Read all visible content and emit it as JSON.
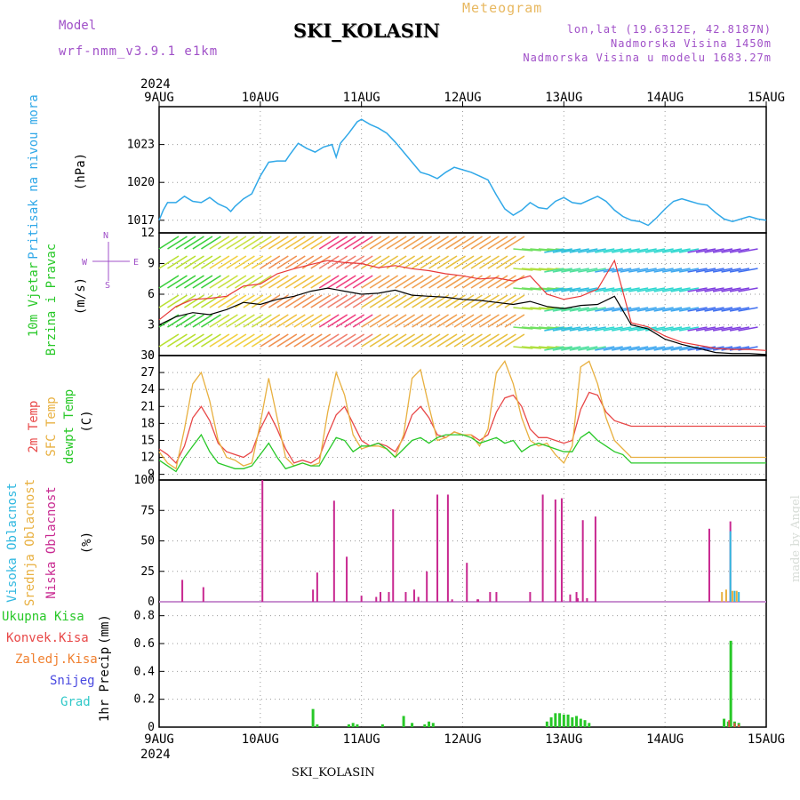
{
  "header": {
    "title": "SKI_KOLASIN",
    "subtitle": "Meteogram",
    "model_label": "Model",
    "model_value": "wrf-nmm_v3.9.1 e1km",
    "info_lines": [
      "lon,lat (19.6312E, 42.8187N)",
      "Nadmorska Visina 1450m",
      "Nadmorska Visina u modelu 1683.27m"
    ],
    "watermark": "made by Angel",
    "footer": "SKI_KOLASIN"
  },
  "x_axis": {
    "year": "2024",
    "labels": [
      "9AUG",
      "10AUG",
      "11AUG",
      "12AUG",
      "13AUG",
      "14AUG",
      "15AUG"
    ],
    "range_hours": [
      0,
      144
    ]
  },
  "colors": {
    "pressure": "#30a8e8",
    "temp2m": "#e84848",
    "sfc_temp": "#e8b040",
    "dewpt": "#28c828",
    "wind_speed": "#000000",
    "gust": "#e83838",
    "precip_total": "#28c828",
    "precip_conv": "#e84848",
    "precip_frozen": "#f08030",
    "snow": "#4848e0",
    "grad": "#30c8c8",
    "cloud_high": "#30b8e0",
    "cloud_mid": "#e8b040",
    "cloud_low": "#c82890"
  },
  "chart_data": [
    {
      "type": "line",
      "panel": "pressure",
      "ylabel": "Pritisak na nivou mora",
      "unit": "(hPa)",
      "ylim": [
        1016,
        1026
      ],
      "yticks": [
        1017,
        1020,
        1023
      ],
      "x": [
        0,
        1,
        2,
        4,
        6,
        8,
        10,
        12,
        14,
        16,
        17,
        18,
        20,
        22,
        24,
        26,
        28,
        30,
        31,
        33,
        35,
        37,
        39,
        41,
        42,
        43,
        45,
        47,
        48,
        50,
        52,
        54,
        56,
        58,
        60,
        62,
        64,
        66,
        68,
        70,
        72,
        74,
        76,
        78,
        80,
        82,
        84,
        86,
        88,
        90,
        92,
        94,
        96,
        98,
        100,
        102,
        104,
        106,
        108,
        110,
        112,
        114,
        116,
        118,
        120,
        122,
        124,
        126,
        128,
        130,
        132,
        134,
        136,
        138,
        140,
        142,
        144
      ],
      "y": [
        1017.0,
        1017.8,
        1018.4,
        1018.4,
        1018.9,
        1018.5,
        1018.4,
        1018.8,
        1018.3,
        1018.0,
        1017.7,
        1018.1,
        1018.7,
        1019.1,
        1020.5,
        1021.6,
        1021.7,
        1021.7,
        1022.2,
        1023.1,
        1022.7,
        1022.4,
        1022.8,
        1023.0,
        1022.0,
        1023.1,
        1023.9,
        1024.8,
        1025.0,
        1024.6,
        1024.3,
        1023.9,
        1023.2,
        1022.4,
        1021.6,
        1020.8,
        1020.6,
        1020.3,
        1020.8,
        1021.2,
        1021.0,
        1020.8,
        1020.5,
        1020.2,
        1019.0,
        1017.9,
        1017.4,
        1017.8,
        1018.4,
        1018.0,
        1017.9,
        1018.5,
        1018.8,
        1018.4,
        1018.3,
        1018.6,
        1018.9,
        1018.5,
        1017.8,
        1017.3,
        1017.0,
        1016.9,
        1016.6,
        1017.2,
        1017.9,
        1018.5,
        1018.7,
        1018.5,
        1018.3,
        1018.2,
        1017.6,
        1017.1,
        1016.9,
        1017.1,
        1017.3,
        1017.1,
        1017.0
      ]
    },
    {
      "type": "line",
      "panel": "wind",
      "ylabel": "10m Vjetar",
      "ylabel2": "Brzina i Pravac",
      "unit": "(m/s)",
      "ylim": [
        0,
        12
      ],
      "yticks": [
        0,
        3,
        6,
        9,
        12
      ],
      "compass": [
        "N",
        "W",
        "E",
        "S"
      ],
      "x": [
        0,
        4,
        8,
        12,
        16,
        20,
        24,
        28,
        32,
        36,
        40,
        44,
        48,
        52,
        56,
        60,
        64,
        68,
        72,
        76,
        80,
        84,
        88,
        92,
        96,
        100,
        104,
        108,
        112,
        116,
        120,
        124,
        128,
        132,
        136,
        140,
        144
      ],
      "y": [
        3.0,
        3.8,
        4.2,
        4.0,
        4.5,
        5.2,
        5.0,
        5.5,
        5.8,
        6.3,
        6.6,
        6.3,
        6.0,
        6.1,
        6.4,
        5.9,
        5.8,
        5.7,
        5.5,
        5.4,
        5.2,
        5.0,
        5.3,
        4.8,
        4.6,
        4.9,
        5.0,
        5.8,
        3.0,
        2.6,
        1.6,
        1.1,
        0.7,
        0.3,
        0.2,
        0.2,
        0.1
      ],
      "gust": [
        3.5,
        4.8,
        5.5,
        5.6,
        5.8,
        6.8,
        7.0,
        8.0,
        8.5,
        8.9,
        9.3,
        9.1,
        9.0,
        8.6,
        8.8,
        8.5,
        8.3,
        8.0,
        7.8,
        7.5,
        7.6,
        7.3,
        7.8,
        6.0,
        5.5,
        5.8,
        6.5,
        9.3,
        3.2,
        2.8,
        1.9,
        1.3,
        1.0,
        0.7,
        0.6,
        0.6,
        0.5
      ]
    },
    {
      "type": "line",
      "panel": "temperature",
      "ylabel": "2m Temp",
      "ylabel2": "SFC Temp",
      "ylabel3": "dewpt Temp",
      "unit": "(C)",
      "ylim": [
        8,
        30
      ],
      "yticks": [
        9,
        12,
        15,
        18,
        21,
        24,
        27,
        30
      ],
      "x": [
        0,
        2,
        4,
        6,
        8,
        10,
        12,
        14,
        16,
        18,
        20,
        22,
        24,
        26,
        28,
        30,
        32,
        34,
        36,
        38,
        40,
        42,
        44,
        46,
        48,
        50,
        52,
        54,
        56,
        58,
        60,
        62,
        64,
        66,
        68,
        70,
        72,
        74,
        76,
        78,
        80,
        82,
        84,
        86,
        88,
        90,
        92,
        94,
        96,
        98,
        100,
        102,
        104,
        106,
        108,
        110,
        112,
        114,
        116,
        118,
        120,
        122,
        124,
        126,
        128,
        130,
        132,
        134,
        136,
        138,
        140,
        142,
        144
      ],
      "series": [
        {
          "name": "2m Temp",
          "values": [
            13.5,
            12.5,
            11.0,
            14.0,
            19.0,
            21.0,
            18.5,
            14.5,
            13.0,
            12.5,
            12.0,
            13.0,
            17.0,
            20.0,
            17.0,
            13.5,
            11.0,
            11.5,
            11.0,
            12.0,
            16.0,
            19.5,
            21.0,
            18.0,
            15.0,
            14.0,
            14.5,
            14.0,
            13.0,
            15.5,
            19.5,
            21.0,
            19.0,
            16.0,
            15.5,
            16.5,
            16.0,
            16.0,
            15.0,
            16.0,
            20.0,
            22.5,
            23.0,
            21.0,
            17.0,
            15.5,
            15.5,
            15.0,
            14.5,
            15.0,
            20.5,
            23.5,
            23.0,
            20.0,
            18.5,
            18.0,
            17.5,
            17.5,
            17.5,
            17.5,
            17.5,
            17.5,
            17.5,
            17.5,
            17.5,
            17.5,
            17.5,
            17.5,
            17.5,
            17.5,
            17.5,
            17.5,
            17.5
          ]
        },
        {
          "name": "SFC Temp",
          "values": [
            13.0,
            11.0,
            10.0,
            17.0,
            25.0,
            27.0,
            22.0,
            15.0,
            12.0,
            11.5,
            10.5,
            11.0,
            18.0,
            26.0,
            19.0,
            12.0,
            10.5,
            11.0,
            10.5,
            11.0,
            20.0,
            27.0,
            23.0,
            16.0,
            13.5,
            14.0,
            14.0,
            13.5,
            12.0,
            16.0,
            26.0,
            27.5,
            21.0,
            15.0,
            15.5,
            16.5,
            16.0,
            16.0,
            14.0,
            17.0,
            27.0,
            29.0,
            25.0,
            19.0,
            15.0,
            14.0,
            14.5,
            12.5,
            11.0,
            14.0,
            28.0,
            29.0,
            25.0,
            19.0,
            15.0,
            13.5,
            12.0,
            12.0,
            12.0,
            12.0,
            12.0,
            12.0,
            12.0,
            12.0,
            12.0,
            12.0,
            12.0,
            12.0,
            12.0,
            12.0,
            12.0,
            12.0,
            12.0
          ]
        },
        {
          "name": "dewpt Temp",
          "values": [
            11.5,
            10.5,
            9.5,
            12.0,
            14.0,
            16.0,
            13.0,
            11.0,
            10.5,
            10.0,
            10.0,
            10.5,
            12.5,
            14.5,
            12.0,
            10.0,
            10.5,
            11.0,
            10.5,
            10.5,
            13.0,
            15.5,
            15.0,
            13.0,
            14.0,
            14.0,
            14.5,
            13.5,
            12.0,
            13.5,
            15.0,
            15.5,
            14.5,
            15.5,
            16.0,
            16.0,
            16.0,
            15.5,
            14.5,
            15.0,
            15.5,
            14.5,
            15.0,
            13.0,
            14.0,
            14.5,
            14.0,
            13.5,
            13.0,
            13.0,
            15.5,
            16.5,
            15.0,
            14.0,
            13.0,
            12.5,
            11.0,
            11.0,
            11.0,
            11.0,
            11.0,
            11.0,
            11.0,
            11.0,
            11.0,
            11.0,
            11.0,
            11.0,
            11.0,
            11.0,
            11.0,
            11.0,
            11.0
          ]
        }
      ]
    },
    {
      "type": "bar",
      "panel": "cloud",
      "ylabel": "Visoka Oblacnost",
      "ylabel2": "Srednja Oblacnost",
      "ylabel3": "Niska Oblacnost",
      "unit": "(%)",
      "ylim": [
        0,
        100
      ],
      "yticks": [
        0,
        25,
        50,
        75,
        100
      ],
      "low": {
        "x": [
          5.5,
          10.5,
          24.5,
          36.5,
          37.5,
          41.5,
          44.5,
          48.0,
          51.5,
          52.5,
          54.5,
          55.5,
          58.5,
          60.5,
          61.5,
          63.5,
          66.0,
          68.5,
          69.5,
          73.0,
          75.5,
          75.7,
          78.5,
          80.0,
          88.0,
          91.0,
          94.0,
          95.5,
          97.5,
          99.0,
          99.3,
          100.5,
          101.5,
          103.5,
          130.5,
          135.5
        ],
        "y": [
          18,
          12,
          100,
          10,
          24,
          83,
          37,
          5,
          4,
          8,
          8,
          76,
          8,
          10,
          4,
          25,
          88,
          88,
          2,
          32,
          2,
          2,
          8,
          8,
          8,
          88,
          84,
          85,
          6,
          8,
          3,
          67,
          3,
          70,
          60,
          66
        ]
      },
      "mid": {
        "x": [
          133.5,
          134.5,
          136.0,
          137.0
        ],
        "y": [
          8,
          10,
          9,
          9
        ]
      },
      "high": {
        "x": [
          135.5,
          136.5,
          137.5
        ],
        "y": [
          58,
          9,
          8
        ]
      }
    },
    {
      "type": "bar",
      "panel": "precip",
      "ylabel": "1hr Precip",
      "unit": "(mm)",
      "ylim": [
        0,
        0.9
      ],
      "yticks": [
        0,
        0.2,
        0.4,
        0.6,
        0.8
      ],
      "legend": [
        "Ukupna Kisa",
        "Konvek.Kisa",
        "Zaledj.Kisa",
        "Snijeg",
        "Grad"
      ],
      "total": {
        "x": [
          36.5,
          37.5,
          45.0,
          46.0,
          47.0,
          53.0,
          58.0,
          60.0,
          63.0,
          64.0,
          65.0,
          92.0,
          93.0,
          94.0,
          95.0,
          96.0,
          97.0,
          98.0,
          99.0,
          100.0,
          101.0,
          102.0,
          134.0,
          135.0,
          135.6,
          136.5,
          137.5
        ],
        "y": [
          0.13,
          0.02,
          0.02,
          0.03,
          0.02,
          0.02,
          0.08,
          0.03,
          0.02,
          0.04,
          0.03,
          0.04,
          0.07,
          0.1,
          0.1,
          0.09,
          0.09,
          0.07,
          0.08,
          0.06,
          0.05,
          0.03,
          0.06,
          0.04,
          0.62,
          0.04,
          0.03
        ]
      },
      "conv": {
        "x": [
          135.2,
          136.5,
          137.5
        ],
        "y": [
          0.05,
          0.03,
          0.02
        ]
      }
    }
  ]
}
